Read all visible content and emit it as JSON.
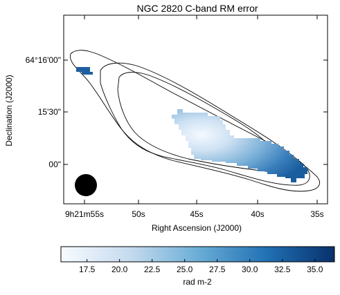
{
  "figure": {
    "title": "NGC 2820   C-band   RM error",
    "xlabel": "Right Ascension (J2000)",
    "ylabel": "Declination (J2000)",
    "colorbar_label": "rad m-2",
    "cmap_low": "#f6fbff",
    "cmap_high": "#08306b"
  },
  "ra_ticks": [
    {
      "label": "9h21m55s"
    },
    {
      "label": "50s"
    },
    {
      "label": "45s"
    },
    {
      "label": "40s"
    },
    {
      "label": "35s"
    }
  ],
  "dec_ticks": [
    {
      "label": "64°16'00\""
    },
    {
      "label": "15'30\""
    },
    {
      "label": "00\""
    }
  ],
  "colorbar_ticks": [
    {
      "value": 17.5,
      "label": "17.5"
    },
    {
      "value": 20.0,
      "label": "20.0"
    },
    {
      "value": 22.5,
      "label": "22.5"
    },
    {
      "value": 25.0,
      "label": "25.0"
    },
    {
      "value": 27.5,
      "label": "27.5"
    },
    {
      "value": 30.0,
      "label": "30.0"
    },
    {
      "value": 32.5,
      "label": "32.5"
    },
    {
      "value": 35.0,
      "label": "35.0"
    }
  ],
  "colorbar_range": [
    15.5,
    36.5
  ]
}
